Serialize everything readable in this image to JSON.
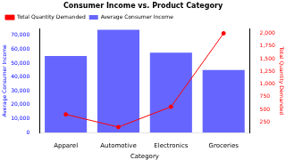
{
  "chart_data": {
    "type": "bar",
    "title": "Consumer Income vs. Product Category",
    "x_label": "Category",
    "y_label": "Average Consumer Income",
    "y2_label": "Total Quantity Demanded",
    "categories": [
      "Apparel",
      "Automotive",
      "Electronics",
      "Groceries"
    ],
    "series": [
      {
        "name": "Average Consumer Income",
        "type": "bar",
        "color": "#6666ff",
        "values": [
          55000,
          74000,
          57500,
          45000
        ]
      },
      {
        "name": "Total Quantity Demanded",
        "type": "line",
        "color": "#ff0000",
        "marker": "circle",
        "axis": "y2",
        "values": [
          400,
          150,
          550,
          2000
        ]
      }
    ],
    "ylim": [
      0,
      74500
    ],
    "yticks": [
      0,
      10000,
      20000,
      30000,
      40000,
      50000,
      60000,
      70000
    ],
    "y2lim": [
      40,
      2085
    ],
    "y2ticks": [
      250,
      500,
      750,
      1000,
      1250,
      1500,
      1750,
      2000
    ],
    "legend": "upper left",
    "grid": false
  }
}
